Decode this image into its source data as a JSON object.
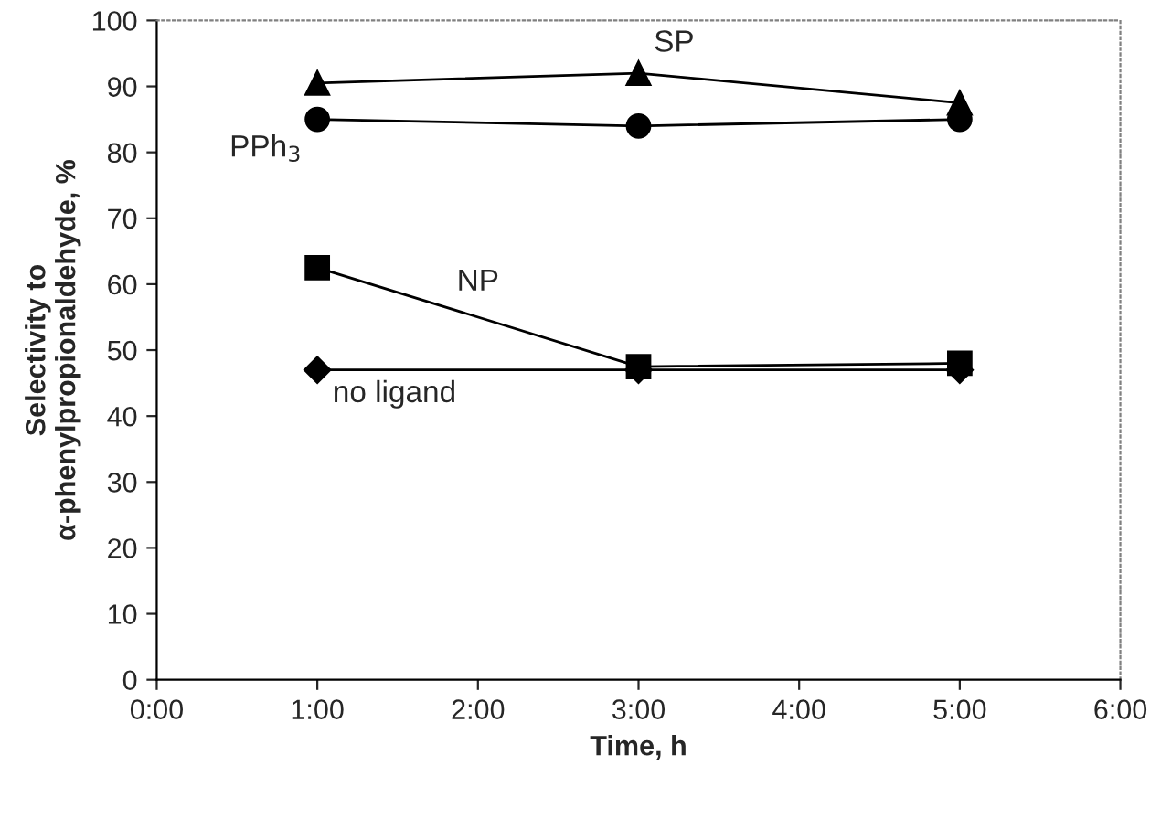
{
  "chart_data": {
    "type": "line",
    "xlabel": "Time, h",
    "ylabel": "Selectivity to\nα-phenylpropionaldehyde, %",
    "x": [
      1,
      3,
      5
    ],
    "series": [
      {
        "name": "SP",
        "color": "#000000",
        "marker": "triangle",
        "values": [
          90.5,
          92,
          87.5
        ]
      },
      {
        "name": "PPh$_{3}$",
        "color": "#000000",
        "marker": "circle",
        "values": [
          85,
          84,
          85
        ]
      },
      {
        "name": "NP",
        "color": "#000000",
        "marker": "square",
        "values": [
          62.5,
          47.5,
          48
        ]
      },
      {
        "name": "no ligand",
        "color": "#000000",
        "marker": "diamond",
        "values": [
          47,
          47,
          47
        ]
      }
    ],
    "xlim": [
      0,
      6
    ],
    "xticks": [
      {
        "value": 0,
        "label": "0:00"
      },
      {
        "value": 1,
        "label": "1:00"
      },
      {
        "value": 2,
        "label": "2:00"
      },
      {
        "value": 3,
        "label": "3:00"
      },
      {
        "value": 4,
        "label": "4:00"
      },
      {
        "value": 5,
        "label": "5:00"
      },
      {
        "value": 6,
        "label": "6:00"
      }
    ],
    "ylim": [
      0,
      100
    ],
    "yticks": [
      0,
      10,
      20,
      30,
      40,
      50,
      60,
      70,
      80,
      90,
      100
    ],
    "grid": false,
    "legend": false,
    "line_style": "solid"
  }
}
